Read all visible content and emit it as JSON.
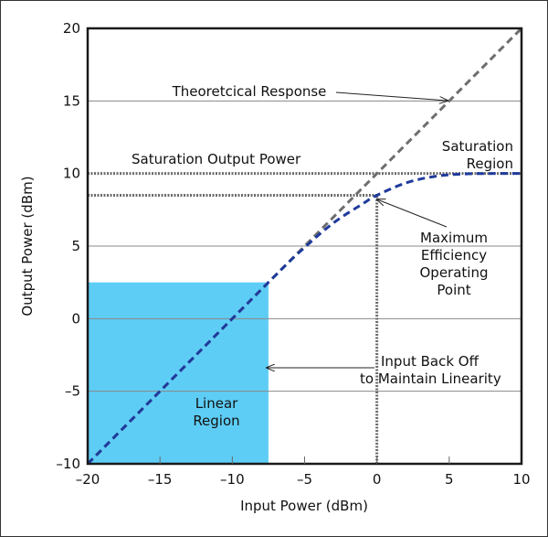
{
  "chart_data": {
    "type": "line",
    "xlabel": "Input Power (dBm)",
    "ylabel": "Output Power (dBm)",
    "xlim": [
      -20,
      10
    ],
    "ylim": [
      -10,
      20
    ],
    "xticks": [
      "–20",
      "–15",
      "–10",
      "–5",
      "0",
      "5",
      "10"
    ],
    "xtick_values": [
      -20,
      -15,
      -10,
      -5,
      0,
      5,
      10
    ],
    "yticks": [
      "–10",
      "–5",
      "0",
      "5",
      "10",
      "15",
      "20"
    ],
    "ytick_values": [
      -10,
      -5,
      0,
      5,
      10,
      15,
      20
    ],
    "grid": "horizontal",
    "series": [
      {
        "key": "theoretical",
        "style": "dashed",
        "color": "#6e6e6e",
        "x": [
          -20,
          10
        ],
        "y": [
          -10,
          20
        ]
      },
      {
        "key": "actual",
        "style": "dashed",
        "color": "#1f3b9c",
        "x": [
          -20,
          -7.5,
          -5,
          -3,
          -1,
          0,
          2,
          4,
          6,
          8,
          10
        ],
        "y": [
          -10,
          2.5,
          4.9,
          6.6,
          7.9,
          8.5,
          9.35,
          9.8,
          9.97,
          10,
          10
        ]
      }
    ],
    "reference_lines": [
      {
        "key": "saturation",
        "orientation": "horizontal",
        "value": 10,
        "from": -20,
        "to": 10,
        "style": "dotted"
      },
      {
        "key": "max-eff-y",
        "orientation": "horizontal",
        "value": 8.5,
        "from": -20,
        "to": 0,
        "style": "dotted"
      },
      {
        "key": "max-eff-x",
        "orientation": "vertical",
        "value": 0,
        "from": -10,
        "to": 8.5,
        "style": "dotted"
      }
    ],
    "linear_region": {
      "x": [
        -20,
        -7.5
      ],
      "y": [
        -10,
        2.5
      ],
      "color": "#5ecdf5"
    },
    "annotations": {
      "theoretical": "Theoretcical Response",
      "sat_power": "Saturation Output Power",
      "sat_region": [
        "Saturation",
        "Region"
      ],
      "max_eff": [
        "Maximum",
        "Efficiency",
        "Operating",
        "Point"
      ],
      "backoff": [
        "Input Back Off",
        "to Maintain Linearity"
      ],
      "linear": [
        "Linear",
        "Region"
      ]
    }
  }
}
